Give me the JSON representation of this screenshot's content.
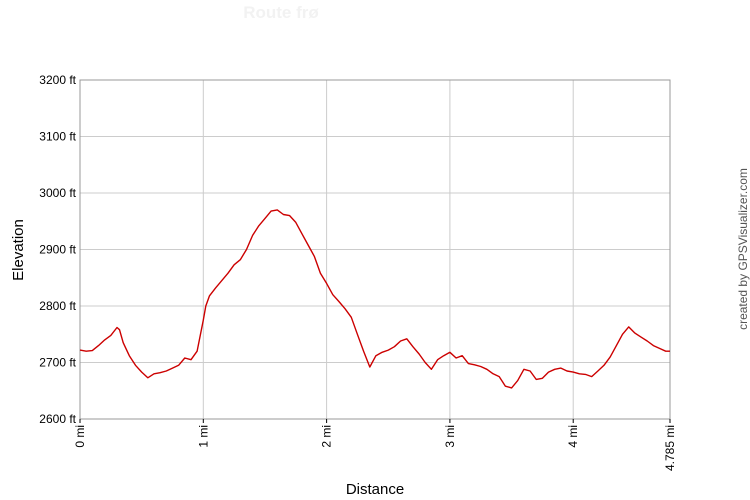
{
  "chart_data": {
    "type": "line",
    "title": "Route frø",
    "xlabel": "Distance",
    "ylabel": "Elevation",
    "credit": "created by GPSVisualizer.com",
    "xlim": [
      0,
      4.785
    ],
    "ylim": [
      2600,
      3200
    ],
    "x_ticks": [
      {
        "value": 0,
        "label": "0 mi"
      },
      {
        "value": 1,
        "label": "1 mi"
      },
      {
        "value": 2,
        "label": "2 mi"
      },
      {
        "value": 3,
        "label": "3 mi"
      },
      {
        "value": 4,
        "label": "4 mi"
      },
      {
        "value": 4.785,
        "label": "4.785 mi"
      }
    ],
    "y_ticks": [
      {
        "value": 2600,
        "label": "2600 ft"
      },
      {
        "value": 2700,
        "label": "2700 ft"
      },
      {
        "value": 2800,
        "label": "2800 ft"
      },
      {
        "value": 2900,
        "label": "2900 ft"
      },
      {
        "value": 3000,
        "label": "3000 ft"
      },
      {
        "value": 3100,
        "label": "3100 ft"
      },
      {
        "value": 3200,
        "label": "3200 ft"
      }
    ],
    "grid": true,
    "colors": {
      "line": "#cc0000",
      "grid": "#cccccc",
      "frame": "#999999"
    },
    "series": [
      {
        "x": [
          0,
          0.05,
          0.1,
          0.15,
          0.2,
          0.25,
          0.3,
          0.32,
          0.35,
          0.4,
          0.45,
          0.5,
          0.55,
          0.6,
          0.65,
          0.7,
          0.75,
          0.8,
          0.85,
          0.9,
          0.95,
          1.0,
          1.02,
          1.05,
          1.1,
          1.15,
          1.2,
          1.25,
          1.3,
          1.35,
          1.4,
          1.45,
          1.5,
          1.55,
          1.6,
          1.65,
          1.7,
          1.75,
          1.8,
          1.85,
          1.9,
          1.95,
          2.0,
          2.05,
          2.1,
          2.15,
          2.2,
          2.25,
          2.3,
          2.35,
          2.4,
          2.45,
          2.5,
          2.55,
          2.6,
          2.65,
          2.7,
          2.75,
          2.8,
          2.85,
          2.9,
          2.95,
          3.0,
          3.05,
          3.1,
          3.15,
          3.2,
          3.25,
          3.3,
          3.35,
          3.4,
          3.45,
          3.5,
          3.55,
          3.6,
          3.65,
          3.7,
          3.75,
          3.8,
          3.85,
          3.9,
          3.95,
          4.0,
          4.05,
          4.1,
          4.15,
          4.2,
          4.25,
          4.3,
          4.35,
          4.4,
          4.45,
          4.5,
          4.55,
          4.6,
          4.65,
          4.7,
          4.75,
          4.785
        ],
        "y": [
          2722,
          2720,
          2721,
          2730,
          2740,
          2748,
          2762,
          2758,
          2735,
          2712,
          2695,
          2683,
          2673,
          2680,
          2682,
          2685,
          2690,
          2695,
          2708,
          2705,
          2720,
          2775,
          2800,
          2818,
          2832,
          2845,
          2858,
          2873,
          2882,
          2900,
          2925,
          2942,
          2955,
          2968,
          2970,
          2962,
          2960,
          2948,
          2928,
          2908,
          2888,
          2858,
          2840,
          2820,
          2808,
          2795,
          2780,
          2750,
          2720,
          2692,
          2712,
          2718,
          2722,
          2728,
          2738,
          2742,
          2728,
          2715,
          2700,
          2688,
          2705,
          2712,
          2718,
          2708,
          2712,
          2698,
          2696,
          2693,
          2688,
          2680,
          2675,
          2658,
          2655,
          2668,
          2688,
          2685,
          2670,
          2672,
          2683,
          2688,
          2690,
          2685,
          2683,
          2680,
          2679,
          2675,
          2685,
          2695,
          2710,
          2730,
          2750,
          2763,
          2752,
          2745,
          2738,
          2730,
          2725,
          2720,
          2720
        ]
      }
    ]
  }
}
